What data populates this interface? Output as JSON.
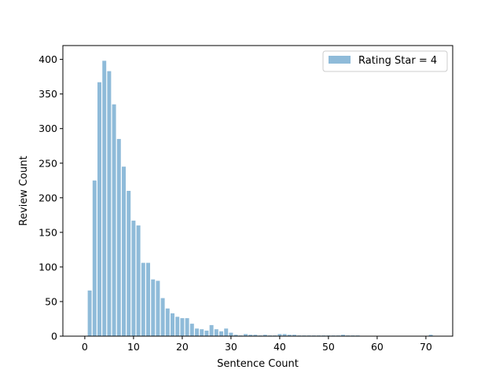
{
  "chart_data": {
    "type": "bar",
    "title": "",
    "xlabel": "Sentence Count",
    "ylabel": "Review Count",
    "xlim": [
      -4.5,
      75.5
    ],
    "ylim": [
      0,
      420
    ],
    "xticks": [
      0,
      10,
      20,
      30,
      40,
      50,
      60,
      70
    ],
    "yticks": [
      0,
      50,
      100,
      150,
      200,
      250,
      300,
      350,
      400
    ],
    "grid": false,
    "legend_position": "top-right",
    "series": [
      {
        "name": "Rating Star = 4",
        "color": "#8fbbd9",
        "x": [
          1,
          2,
          3,
          4,
          5,
          6,
          7,
          8,
          9,
          10,
          11,
          12,
          13,
          14,
          15,
          16,
          17,
          18,
          19,
          20,
          21,
          22,
          23,
          24,
          25,
          26,
          27,
          28,
          29,
          30,
          31,
          32,
          33,
          34,
          35,
          36,
          37,
          38,
          39,
          40,
          41,
          42,
          43,
          44,
          45,
          46,
          47,
          48,
          49,
          50,
          51,
          52,
          53,
          54,
          55,
          56,
          71
        ],
        "values": [
          66,
          225,
          367,
          398,
          383,
          335,
          285,
          245,
          210,
          167,
          160,
          106,
          106,
          82,
          80,
          55,
          40,
          33,
          28,
          26,
          26,
          18,
          11,
          10,
          8,
          16,
          10,
          7,
          11,
          5,
          2,
          1,
          3,
          2,
          2,
          1,
          2,
          1,
          1,
          3,
          3,
          2,
          2,
          1,
          1,
          1,
          1,
          1,
          1,
          1,
          1,
          1,
          2,
          1,
          1,
          1,
          2
        ]
      }
    ]
  }
}
